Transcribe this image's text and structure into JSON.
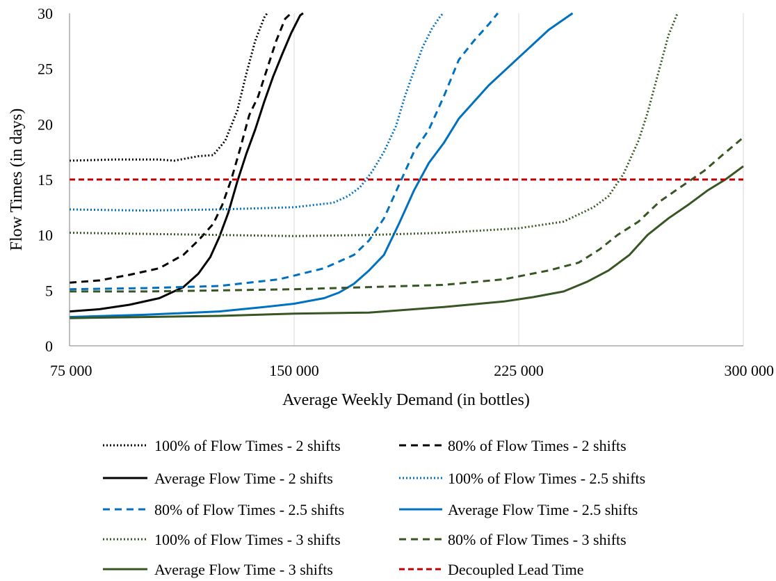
{
  "chart_data": {
    "type": "line",
    "xlabel": "Average Weekly Demand (in bottles)",
    "ylabel": "Flow Times (in days)",
    "xlim": [
      75000,
      300000
    ],
    "ylim": [
      0,
      30
    ],
    "x_ticks": [
      75000,
      150000,
      225000,
      300000
    ],
    "x_tick_labels": [
      "75 000",
      "150 000",
      "225 000",
      "300 000"
    ],
    "y_ticks": [
      0,
      5,
      10,
      15,
      20,
      25,
      30
    ],
    "y_tick_labels": [
      "0",
      "5",
      "10",
      "15",
      "20",
      "25",
      "30"
    ],
    "grid": "vertical",
    "legend_position": "bottom",
    "series": [
      {
        "name": "100% of Flow Times - 2 shifts",
        "color": "#000000",
        "style": "dotted",
        "x": [
          75000,
          90000,
          105000,
          110000,
          118000,
          123000,
          127000,
          131000,
          134000,
          137000,
          140000,
          141000
        ],
        "y": [
          16.7,
          16.8,
          16.8,
          16.7,
          17.1,
          17.2,
          18.5,
          21.2,
          24.5,
          27.5,
          29.6,
          30
        ]
      },
      {
        "name": "80% of Flow Times - 2 shifts",
        "color": "#000000",
        "style": "dashed",
        "x": [
          75000,
          85000,
          95000,
          105000,
          113000,
          118000,
          123000,
          126000,
          129000,
          132000,
          135000,
          138000,
          141000,
          144000,
          147000,
          149000
        ],
        "y": [
          5.7,
          5.9,
          6.4,
          7.0,
          8.2,
          9.5,
          11.0,
          12.7,
          15.0,
          17.8,
          20.8,
          22.5,
          25.0,
          27.5,
          29.5,
          30
        ]
      },
      {
        "name": "Average Flow Time - 2 shifts",
        "color": "#000000",
        "style": "solid",
        "x": [
          75000,
          85000,
          95000,
          105000,
          113000,
          118000,
          122000,
          125000,
          128000,
          131000,
          134000,
          137000,
          140000,
          143000,
          146000,
          149000,
          152000,
          153000
        ],
        "y": [
          3.1,
          3.3,
          3.7,
          4.3,
          5.3,
          6.5,
          8.0,
          9.8,
          12.0,
          14.8,
          17.3,
          19.5,
          22.0,
          24.3,
          26.3,
          28.2,
          29.8,
          30
        ]
      },
      {
        "name": "100% of Flow Times - 2.5 shifts",
        "color": "#0070C0",
        "style": "dotted",
        "x": [
          75000,
          100000,
          125000,
          150000,
          163000,
          168000,
          172000,
          176000,
          180000,
          184000,
          187000,
          190000,
          193000,
          196000,
          199000,
          200000
        ],
        "y": [
          12.3,
          12.2,
          12.3,
          12.5,
          12.9,
          13.5,
          14.3,
          15.7,
          17.5,
          19.8,
          22.5,
          24.8,
          27.0,
          28.6,
          29.8,
          30
        ]
      },
      {
        "name": "80% of Flow Times - 2.5 shifts",
        "color": "#0070C0",
        "style": "dashed",
        "x": [
          75000,
          100000,
          125000,
          145000,
          160000,
          170000,
          175000,
          180000,
          185000,
          190000,
          195000,
          200000,
          205000,
          210000,
          215000,
          218000
        ],
        "y": [
          5.1,
          5.2,
          5.4,
          6.0,
          7.0,
          8.2,
          9.5,
          11.5,
          14.5,
          17.5,
          19.5,
          22.5,
          25.8,
          27.5,
          29.0,
          30
        ]
      },
      {
        "name": "Average Flow Time - 2.5 shifts",
        "color": "#0070C0",
        "style": "solid",
        "x": [
          75000,
          100000,
          125000,
          140000,
          150000,
          160000,
          165000,
          170000,
          175000,
          180000,
          185000,
          190000,
          195000,
          200000,
          205000,
          215000,
          225000,
          235000,
          243000
        ],
        "y": [
          2.6,
          2.8,
          3.1,
          3.5,
          3.8,
          4.3,
          4.8,
          5.6,
          6.8,
          8.2,
          11.0,
          14.0,
          16.5,
          18.3,
          20.5,
          23.5,
          26.0,
          28.5,
          30
        ]
      },
      {
        "name": "100% of Flow Times - 3 shifts",
        "color": "#375623",
        "style": "dotted",
        "x": [
          75000,
          100000,
          125000,
          150000,
          175000,
          200000,
          225000,
          240000,
          250000,
          255000,
          260000,
          265000,
          268000,
          272000,
          275000,
          278000
        ],
        "y": [
          10.2,
          10.1,
          10.0,
          9.9,
          10.0,
          10.2,
          10.6,
          11.2,
          12.5,
          13.5,
          15.5,
          18.5,
          21.0,
          25.0,
          28.0,
          30
        ]
      },
      {
        "name": "80% of Flow Times - 3 shifts",
        "color": "#375623",
        "style": "dashed",
        "x": [
          75000,
          100000,
          125000,
          150000,
          175000,
          200000,
          220000,
          235000,
          245000,
          252000,
          258000,
          265000,
          272000,
          280000,
          287000,
          293000,
          300000
        ],
        "y": [
          4.9,
          4.9,
          5.0,
          5.1,
          5.3,
          5.5,
          6.0,
          6.8,
          7.5,
          8.7,
          10.0,
          11.2,
          13.0,
          14.5,
          15.8,
          17.2,
          18.8
        ]
      },
      {
        "name": "Average Flow Time - 3 shifts",
        "color": "#375623",
        "style": "solid",
        "x": [
          75000,
          100000,
          125000,
          150000,
          175000,
          200000,
          220000,
          230000,
          240000,
          248000,
          255000,
          262000,
          268000,
          275000,
          282000,
          288000,
          294000,
          300000
        ],
        "y": [
          2.5,
          2.6,
          2.7,
          2.9,
          3.0,
          3.5,
          4.0,
          4.4,
          4.9,
          5.8,
          6.8,
          8.2,
          10.0,
          11.5,
          12.8,
          14.0,
          15.0,
          16.2
        ]
      },
      {
        "name": "Decoupled Lead Time",
        "color": "#C00000",
        "style": "dashed-short",
        "x": [
          75000,
          300000
        ],
        "y": [
          15,
          15
        ]
      }
    ]
  }
}
